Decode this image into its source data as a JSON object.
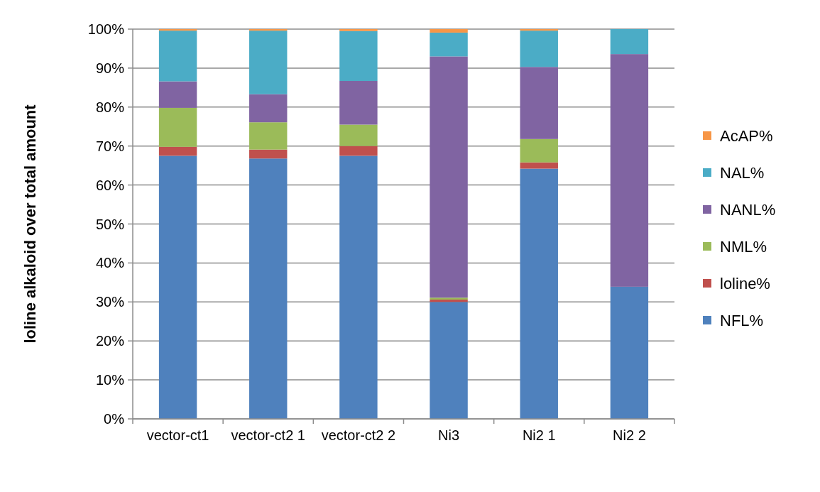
{
  "chart_data": {
    "type": "bar",
    "stacked": true,
    "ylabel": "loline alkaloid over total amount",
    "categories": [
      "vector-ct1",
      "vector-ct2 1",
      "vector-ct2 2",
      "Ni3",
      "Ni2 1",
      "Ni2 2"
    ],
    "series": [
      {
        "name": "NFL%",
        "color": "#4f81bd",
        "values": [
          67.5,
          66.8,
          67.5,
          30.0,
          64.2,
          33.9
        ]
      },
      {
        "name": "loline%",
        "color": "#c0504d",
        "values": [
          2.3,
          2.3,
          2.5,
          0.6,
          1.6,
          0
        ]
      },
      {
        "name": "NML%",
        "color": "#9bbb59",
        "values": [
          10.0,
          7.0,
          5.5,
          0.5,
          6.0,
          0
        ]
      },
      {
        "name": "NANL%",
        "color": "#8064a2",
        "values": [
          6.8,
          7.2,
          11.2,
          61.9,
          18.5,
          59.7
        ]
      },
      {
        "name": "NAL%",
        "color": "#4bacc6",
        "values": [
          13.0,
          16.3,
          12.8,
          6.1,
          9.3,
          6.4
        ]
      },
      {
        "name": "AcAP%",
        "color": "#f79646",
        "values": [
          0.4,
          0.4,
          0.5,
          0.9,
          0.4,
          0
        ]
      }
    ],
    "ylim": [
      0,
      100
    ],
    "yticks": [
      {
        "value": 0,
        "label": "0%"
      },
      {
        "value": 10,
        "label": "10%"
      },
      {
        "value": 20,
        "label": "20%"
      },
      {
        "value": 30,
        "label": "30%"
      },
      {
        "value": 40,
        "label": "40%"
      },
      {
        "value": 50,
        "label": "50%"
      },
      {
        "value": 60,
        "label": "60%"
      },
      {
        "value": 70,
        "label": "70%"
      },
      {
        "value": 80,
        "label": "80%"
      },
      {
        "value": 90,
        "label": "90%"
      },
      {
        "value": 100,
        "label": "100%"
      }
    ],
    "grid": "y",
    "legend": "right"
  }
}
